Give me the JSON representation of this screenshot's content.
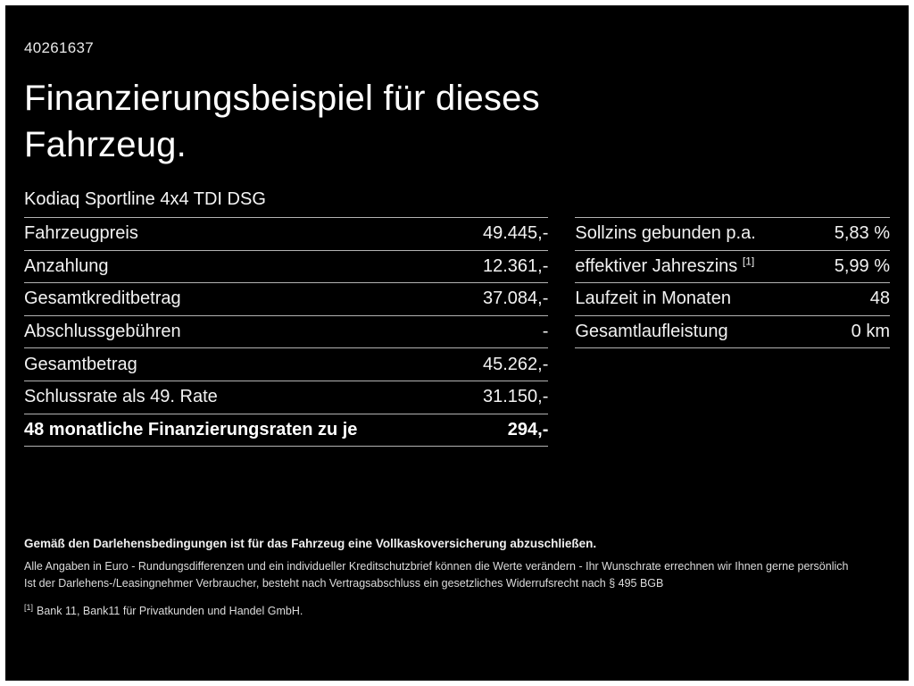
{
  "header": {
    "document_id": "40261637",
    "title": "Finanzierungsbeispiel für dieses\nFahrzeug.",
    "vehicle": "Kodiaq Sportline 4x4 TDI DSG"
  },
  "finance_table": {
    "left_rows": [
      {
        "label": "Fahrzeugpreis",
        "value": "49.445,-"
      },
      {
        "label": "Anzahlung",
        "value": "12.361,-"
      },
      {
        "label": "Gesamtkreditbetrag",
        "value": "37.084,-"
      },
      {
        "label": "Abschlussgebühren",
        "value": "-"
      },
      {
        "label": "Gesamtbetrag",
        "value": "45.262,-"
      },
      {
        "label": "Schlussrate als 49. Rate",
        "value": "31.150,-"
      },
      {
        "label": "48 monatliche Finanzierungsraten zu je",
        "value": "294,-"
      }
    ],
    "right_rows": [
      {
        "label": "Sollzins gebunden p.a.",
        "value": "5,83 %"
      },
      {
        "label": "effektiver Jahreszins",
        "sup": "[1]",
        "value": "5,99 %"
      },
      {
        "label": "Laufzeit in Monaten",
        "value": "48"
      },
      {
        "label": "Gesamtlaufleistung",
        "value": "0 km"
      }
    ]
  },
  "footnotes": {
    "line1": "Gemäß den Darlehensbedingungen ist für das Fahrzeug eine Vollkaskoversicherung abzuschließen.",
    "line2": "Alle Angaben in Euro - Rundungsdifferenzen und ein individueller Kreditschutzbrief können die Werte verändern - Ihr Wunschrate errechnen wir Ihnen gerne persönlich",
    "line3": "Ist der Darlehens-/Leasingnehmer Verbraucher, besteht nach Vertragsabschluss ein gesetzliches Widerrufsrecht nach § 495 BGB",
    "line4_sup": "[1]",
    "line4": "Bank 11, Bank11 für Privatkunden und Handel GmbH."
  },
  "colors": {
    "background": "#000000",
    "frame": "#ffffff",
    "text": "#ffffff",
    "divider": "#b3b3b3"
  }
}
